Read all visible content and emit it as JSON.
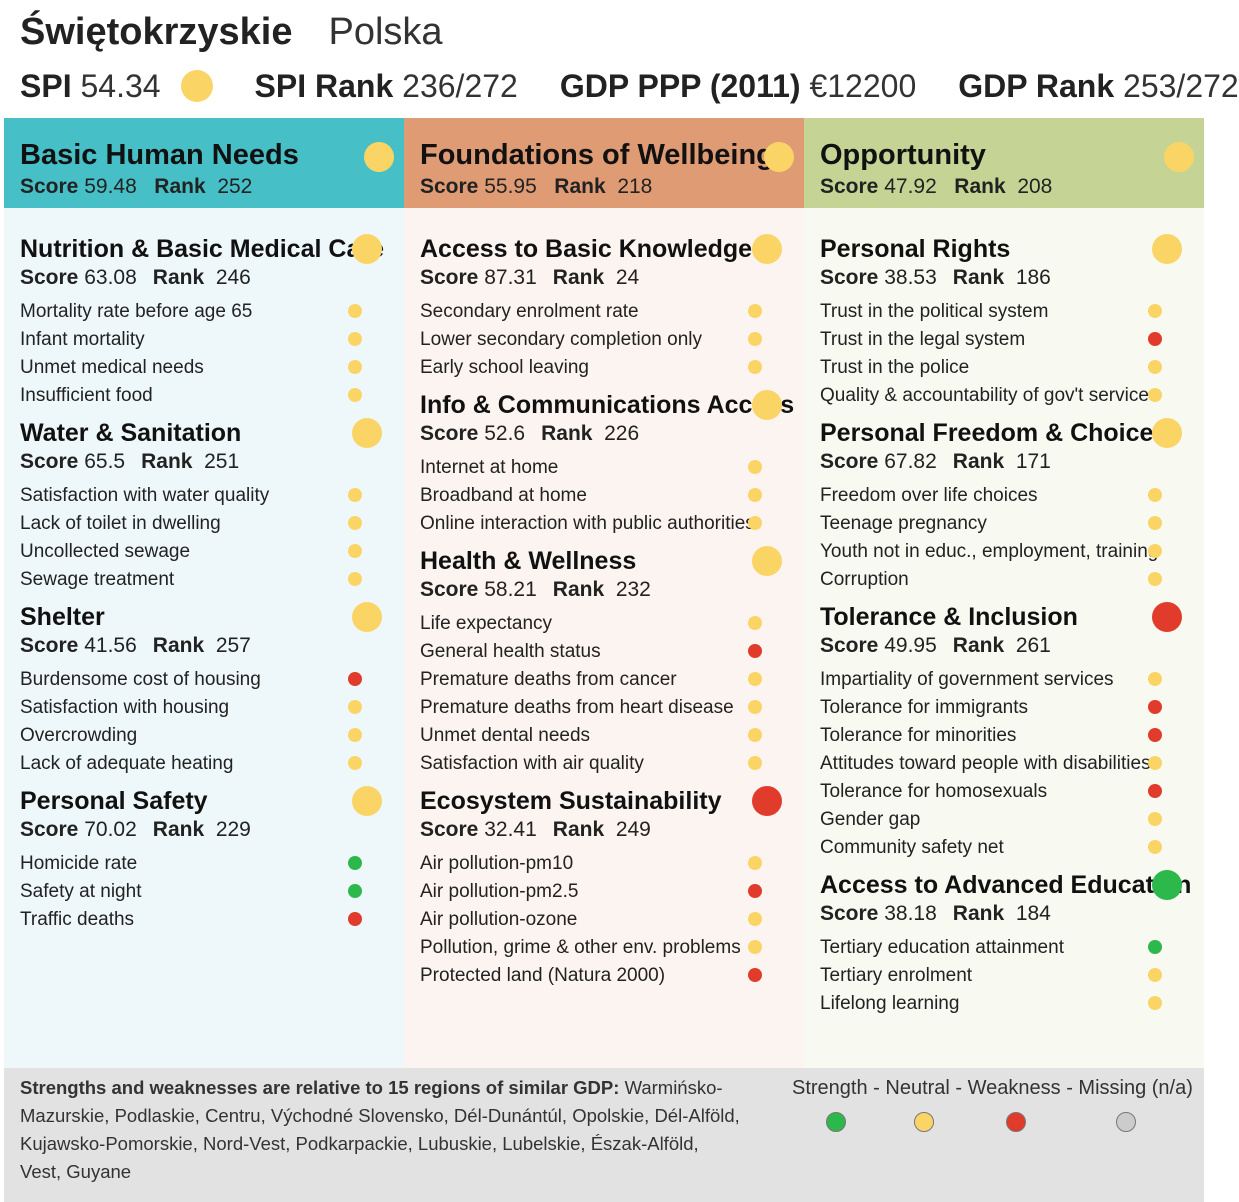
{
  "colors": {
    "strength": "#2db84c",
    "neutral": "#fad565",
    "weakness": "#e03b2b",
    "missing": "#cccccc"
  },
  "header": {
    "region": "Świętokrzyskie",
    "country": "Polska",
    "spi_label": "SPI",
    "spi_value": "54.34",
    "spi_status": "neutral",
    "spi_rank_label": "SPI Rank",
    "spi_rank_value": "236/272",
    "gdp_label": "GDP PPP (2011)",
    "gdp_value": "€12200",
    "gdp_rank_label": "GDP Rank",
    "gdp_rank_value": "253/272"
  },
  "labels": {
    "score": "Score",
    "rank": "Rank"
  },
  "columns": [
    {
      "title": "Basic Human Needs",
      "score": "59.48",
      "rank": "252",
      "status": "neutral",
      "head_color": "#47bfc7",
      "body_color": "#eef8fa",
      "components": [
        {
          "title": "Nutrition & Basic Medical Care",
          "score": "63.08",
          "rank": "246",
          "status": "neutral",
          "indicators": [
            {
              "label": "Mortality rate before age 65",
              "status": "neutral"
            },
            {
              "label": "Infant mortality",
              "status": "neutral"
            },
            {
              "label": "Unmet medical needs",
              "status": "neutral"
            },
            {
              "label": "Insufficient food",
              "status": "neutral"
            }
          ]
        },
        {
          "title": "Water & Sanitation",
          "score": "65.5",
          "rank": "251",
          "status": "neutral",
          "indicators": [
            {
              "label": "Satisfaction with water quality",
              "status": "neutral"
            },
            {
              "label": "Lack of toilet in dwelling",
              "status": "neutral"
            },
            {
              "label": "Uncollected sewage",
              "status": "neutral"
            },
            {
              "label": "Sewage treatment",
              "status": "neutral"
            }
          ]
        },
        {
          "title": "Shelter",
          "score": "41.56",
          "rank": "257",
          "status": "neutral",
          "indicators": [
            {
              "label": "Burdensome cost of housing",
              "status": "weakness"
            },
            {
              "label": "Satisfaction with housing",
              "status": "neutral"
            },
            {
              "label": "Overcrowding",
              "status": "neutral"
            },
            {
              "label": "Lack of adequate heating",
              "status": "neutral"
            }
          ]
        },
        {
          "title": "Personal Safety",
          "score": "70.02",
          "rank": "229",
          "status": "neutral",
          "indicators": [
            {
              "label": "Homicide rate",
              "status": "strength"
            },
            {
              "label": "Safety at night",
              "status": "strength"
            },
            {
              "label": "Traffic deaths",
              "status": "weakness"
            }
          ]
        }
      ]
    },
    {
      "title": "Foundations of Wellbeing",
      "score": "55.95",
      "rank": "218",
      "status": "neutral",
      "head_color": "#df9b73",
      "body_color": "#fcf4f0",
      "components": [
        {
          "title": "Access to Basic Knowledge",
          "score": "87.31",
          "rank": "24",
          "status": "neutral",
          "indicators": [
            {
              "label": "Secondary enrolment rate",
              "status": "neutral"
            },
            {
              "label": "Lower secondary completion only",
              "status": "neutral"
            },
            {
              "label": "Early school leaving",
              "status": "neutral"
            }
          ]
        },
        {
          "title": "Info & Communications Access",
          "score": "52.6",
          "rank": "226",
          "status": "neutral",
          "indicators": [
            {
              "label": "Internet at home",
              "status": "neutral"
            },
            {
              "label": "Broadband at home",
              "status": "neutral"
            },
            {
              "label": "Online interaction with public authorities",
              "status": "neutral"
            }
          ]
        },
        {
          "title": "Health & Wellness",
          "score": "58.21",
          "rank": "232",
          "status": "neutral",
          "indicators": [
            {
              "label": "Life expectancy",
              "status": "neutral"
            },
            {
              "label": "General health status",
              "status": "weakness"
            },
            {
              "label": "Premature deaths from cancer",
              "status": "neutral"
            },
            {
              "label": "Premature deaths from heart disease",
              "status": "neutral"
            },
            {
              "label": "Unmet dental needs",
              "status": "neutral"
            },
            {
              "label": "Satisfaction with air quality",
              "status": "neutral"
            }
          ]
        },
        {
          "title": "Ecosystem Sustainability",
          "score": "32.41",
          "rank": "249",
          "status": "weakness",
          "indicators": [
            {
              "label": "Air pollution-pm10",
              "status": "neutral"
            },
            {
              "label": "Air pollution-pm2.5",
              "status": "weakness"
            },
            {
              "label": "Air pollution-ozone",
              "status": "neutral"
            },
            {
              "label": "Pollution, grime & other env. problems",
              "status": "neutral"
            },
            {
              "label": "Protected land (Natura 2000)",
              "status": "weakness"
            }
          ]
        }
      ]
    },
    {
      "title": "Opportunity",
      "score": "47.92",
      "rank": "208",
      "status": "neutral",
      "head_color": "#c5d495",
      "body_color": "#f8f9f1",
      "components": [
        {
          "title": "Personal Rights",
          "score": "38.53",
          "rank": "186",
          "status": "neutral",
          "indicators": [
            {
              "label": "Trust in the political system",
              "status": "neutral"
            },
            {
              "label": "Trust in the legal system",
              "status": "weakness"
            },
            {
              "label": "Trust in the police",
              "status": "neutral"
            },
            {
              "label": "Quality & accountability of gov't services",
              "status": "neutral"
            }
          ]
        },
        {
          "title": "Personal Freedom & Choice",
          "score": "67.82",
          "rank": "171",
          "status": "neutral",
          "indicators": [
            {
              "label": "Freedom over life choices",
              "status": "neutral"
            },
            {
              "label": "Teenage pregnancy",
              "status": "neutral"
            },
            {
              "label": "Youth not in educ., employment, training",
              "status": "neutral"
            },
            {
              "label": "Corruption",
              "status": "neutral"
            }
          ]
        },
        {
          "title": "Tolerance & Inclusion",
          "score": "49.95",
          "rank": "261",
          "status": "weakness",
          "indicators": [
            {
              "label": "Impartiality of government services",
              "status": "neutral"
            },
            {
              "label": "Tolerance for immigrants",
              "status": "weakness"
            },
            {
              "label": "Tolerance for minorities",
              "status": "weakness"
            },
            {
              "label": "Attitudes toward people with disabilities",
              "status": "neutral"
            },
            {
              "label": "Tolerance for homosexuals",
              "status": "weakness"
            },
            {
              "label": "Gender gap",
              "status": "neutral"
            },
            {
              "label": "Community safety net",
              "status": "neutral"
            }
          ]
        },
        {
          "title": "Access to Advanced Education",
          "score": "38.18",
          "rank": "184",
          "status": "strength",
          "indicators": [
            {
              "label": "Tertiary education attainment",
              "status": "strength"
            },
            {
              "label": "Tertiary enrolment",
              "status": "neutral"
            },
            {
              "label": "Lifelong learning",
              "status": "neutral"
            }
          ]
        }
      ]
    }
  ],
  "footer": {
    "note_bold": "Strengths and weaknesses are relative to 15 regions of similar GDP:",
    "note_regions": "Warmińsko-Mazurskie, Podlaskie, Centru, Východné Slovensko, Dél-Dunántúl, Opolskie, Dél-Alföld, Kujawsko-Pomorskie, Nord-Vest, Podkarpackie, Lubuskie, Lubelskie, Észak-Alföld, Vest, Guyane",
    "legend": "Strength - Neutral - Weakness - Missing (n/a)"
  }
}
